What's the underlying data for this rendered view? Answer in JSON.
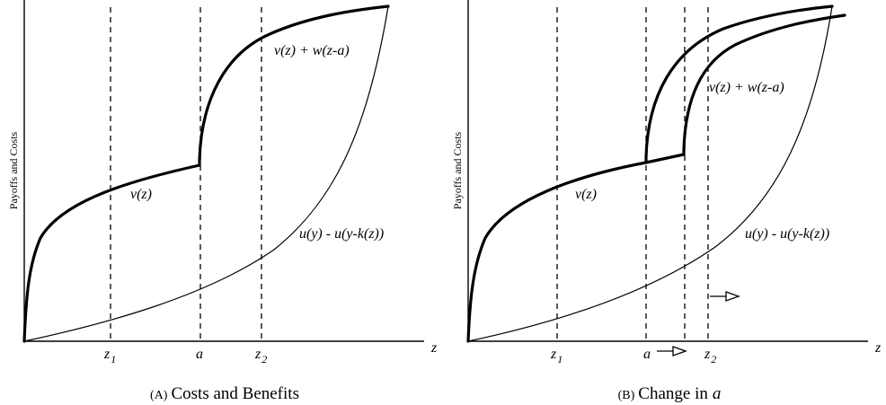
{
  "panel_a": {
    "ylabel": "Payoffs and Costs",
    "xlabel": "z",
    "curve_v": "v(z)",
    "curve_vw": "v(z) + w(z-a)",
    "curve_u": "u(y) - u(y-k(z))",
    "tick_z1_main": "z",
    "tick_z1_sub": "1",
    "tick_a": "a",
    "tick_z2_main": "z",
    "tick_z2_sub": "2",
    "caption_label": "(A)",
    "caption_text": "Costs and Benefits"
  },
  "panel_b": {
    "ylabel": "Payoffs and Costs",
    "xlabel": "z",
    "curve_v": "v(z)",
    "curve_vw": "v(z) + w(z-a)",
    "curve_u": "u(y) - u(y-k(z))",
    "tick_z1_main": "z",
    "tick_z1_sub": "1",
    "tick_a": "a",
    "tick_z2_main": "z",
    "tick_z2_sub": "2",
    "caption_label": "(B)",
    "caption_text": "Change in",
    "caption_var": "a"
  }
}
